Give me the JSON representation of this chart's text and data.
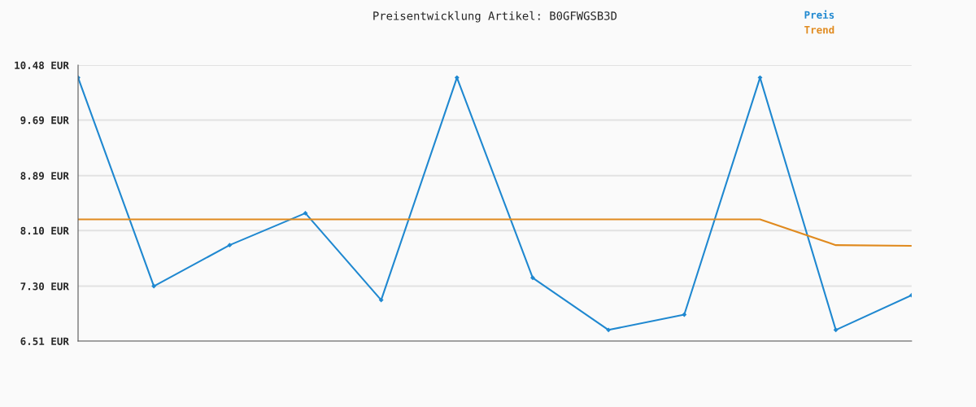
{
  "chart_data": {
    "type": "line",
    "title": "Preisentwicklung Artikel: B0GFWGSB3D",
    "categories": [
      null,
      null,
      null,
      null,
      null,
      null,
      null,
      null,
      null,
      null,
      null,
      null
    ],
    "series": [
      {
        "name": "Preis",
        "color": "#1f88d0",
        "marker": "diamond",
        "values": [
          10.3,
          7.3,
          7.89,
          8.35,
          7.1,
          10.3,
          7.42,
          6.67,
          6.89,
          10.3,
          6.67,
          7.17
        ]
      },
      {
        "name": "Trend",
        "color": "#e08a1e",
        "marker": "none",
        "values": [
          8.26,
          8.26,
          8.26,
          8.26,
          8.26,
          8.26,
          8.26,
          8.26,
          8.26,
          8.26,
          7.89,
          7.88
        ]
      }
    ],
    "ylim": [
      6.51,
      10.48
    ],
    "yticks": [
      {
        "value": 6.51,
        "label": "6.51 EUR"
      },
      {
        "value": 7.3,
        "label": "7.30 EUR"
      },
      {
        "value": 8.1,
        "label": "8.10 EUR"
      },
      {
        "value": 8.89,
        "label": "8.89 EUR"
      },
      {
        "value": 9.69,
        "label": "9.69 EUR"
      },
      {
        "value": 10.48,
        "label": "10.48 EUR"
      }
    ],
    "grid": "y",
    "legend": "top right",
    "line_style": "solid"
  }
}
